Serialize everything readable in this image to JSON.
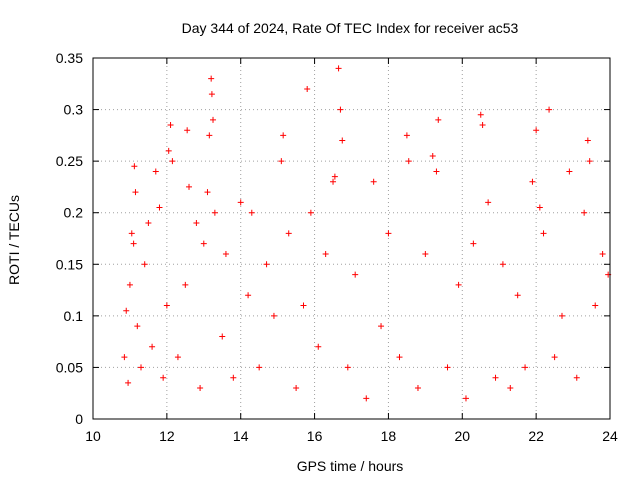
{
  "chart_data": {
    "type": "scatter",
    "title": "Day 344 of 2024, Rate Of TEC Index for receiver ac53",
    "xlabel": "GPS time / hours",
    "ylabel": "ROTI / TECUs",
    "xlim": [
      10,
      24
    ],
    "ylim": [
      0,
      0.35
    ],
    "xticks": [
      "10",
      "12",
      "14",
      "16",
      "18",
      "20",
      "22",
      "24"
    ],
    "yticks": [
      "0",
      "0.05",
      "0.1",
      "0.15",
      "0.2",
      "0.25",
      "0.3",
      "0.35"
    ],
    "grid": true,
    "marker": "+",
    "color": "#ff0000",
    "series": [
      {
        "points": [
          [
            10.85,
            0.06
          ],
          [
            10.9,
            0.105
          ],
          [
            10.95,
            0.035
          ],
          [
            11.0,
            0.13
          ],
          [
            11.05,
            0.18
          ],
          [
            11.1,
            0.17
          ],
          [
            11.12,
            0.245
          ],
          [
            11.15,
            0.22
          ],
          [
            11.2,
            0.09
          ],
          [
            11.3,
            0.05
          ],
          [
            11.4,
            0.15
          ],
          [
            11.5,
            0.19
          ],
          [
            11.6,
            0.07
          ],
          [
            11.7,
            0.24
          ],
          [
            11.8,
            0.205
          ],
          [
            11.9,
            0.04
          ],
          [
            12.0,
            0.11
          ],
          [
            12.05,
            0.26
          ],
          [
            12.1,
            0.285
          ],
          [
            12.15,
            0.25
          ],
          [
            12.3,
            0.06
          ],
          [
            12.5,
            0.13
          ],
          [
            12.55,
            0.28
          ],
          [
            12.6,
            0.225
          ],
          [
            12.8,
            0.19
          ],
          [
            12.9,
            0.03
          ],
          [
            13.0,
            0.17
          ],
          [
            13.1,
            0.22
          ],
          [
            13.15,
            0.275
          ],
          [
            13.2,
            0.33
          ],
          [
            13.22,
            0.315
          ],
          [
            13.25,
            0.29
          ],
          [
            13.3,
            0.2
          ],
          [
            13.5,
            0.08
          ],
          [
            13.6,
            0.16
          ],
          [
            13.8,
            0.04
          ],
          [
            14.0,
            0.21
          ],
          [
            14.2,
            0.12
          ],
          [
            14.3,
            0.2
          ],
          [
            14.5,
            0.05
          ],
          [
            14.7,
            0.15
          ],
          [
            14.9,
            0.1
          ],
          [
            15.1,
            0.25
          ],
          [
            15.15,
            0.275
          ],
          [
            15.3,
            0.18
          ],
          [
            15.5,
            0.03
          ],
          [
            15.7,
            0.11
          ],
          [
            15.8,
            0.32
          ],
          [
            15.9,
            0.2
          ],
          [
            16.1,
            0.07
          ],
          [
            16.3,
            0.16
          ],
          [
            16.5,
            0.23
          ],
          [
            16.55,
            0.235
          ],
          [
            16.65,
            0.34
          ],
          [
            16.7,
            0.3
          ],
          [
            16.75,
            0.27
          ],
          [
            16.9,
            0.05
          ],
          [
            17.1,
            0.14
          ],
          [
            17.4,
            0.02
          ],
          [
            17.6,
            0.23
          ],
          [
            17.8,
            0.09
          ],
          [
            18.0,
            0.18
          ],
          [
            18.3,
            0.06
          ],
          [
            18.5,
            0.275
          ],
          [
            18.55,
            0.25
          ],
          [
            18.8,
            0.03
          ],
          [
            19.0,
            0.16
          ],
          [
            19.2,
            0.255
          ],
          [
            19.3,
            0.24
          ],
          [
            19.35,
            0.29
          ],
          [
            19.6,
            0.05
          ],
          [
            19.9,
            0.13
          ],
          [
            20.1,
            0.02
          ],
          [
            20.3,
            0.17
          ],
          [
            20.5,
            0.295
          ],
          [
            20.55,
            0.285
          ],
          [
            20.7,
            0.21
          ],
          [
            20.9,
            0.04
          ],
          [
            21.1,
            0.15
          ],
          [
            21.3,
            0.03
          ],
          [
            21.5,
            0.12
          ],
          [
            21.7,
            0.05
          ],
          [
            21.9,
            0.23
          ],
          [
            22.0,
            0.28
          ],
          [
            22.1,
            0.205
          ],
          [
            22.2,
            0.18
          ],
          [
            22.35,
            0.3
          ],
          [
            22.5,
            0.06
          ],
          [
            22.7,
            0.1
          ],
          [
            22.9,
            0.24
          ],
          [
            23.1,
            0.04
          ],
          [
            23.3,
            0.2
          ],
          [
            23.4,
            0.27
          ],
          [
            23.45,
            0.25
          ],
          [
            23.6,
            0.11
          ],
          [
            23.8,
            0.16
          ],
          [
            23.95,
            0.14
          ]
        ]
      }
    ]
  }
}
